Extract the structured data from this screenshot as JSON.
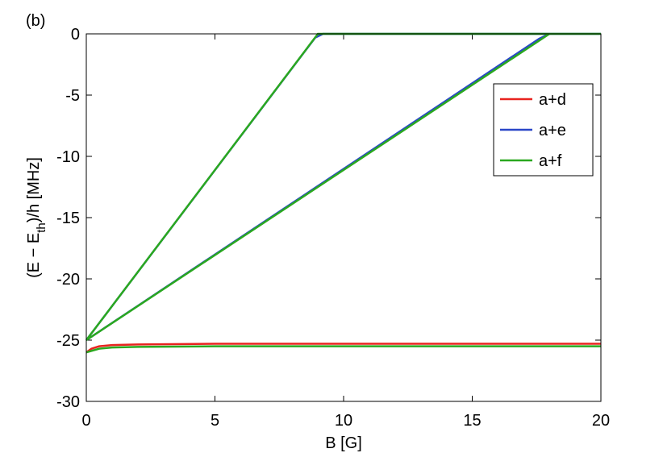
{
  "chart_data": {
    "type": "line",
    "panel_label": "(b)",
    "xlabel": "B [G]",
    "ylabel": {
      "start": "(E − E",
      "sub": "th",
      "end": ")/h [MHz]"
    },
    "xlim": [
      0,
      20
    ],
    "ylim": [
      -30,
      0
    ],
    "xticks": [
      0,
      5,
      10,
      15,
      20
    ],
    "yticks": [
      0,
      -5,
      -10,
      -15,
      -20,
      -25,
      -30
    ],
    "legend": "upper right",
    "series": [
      {
        "name": "a+d",
        "color": "#e8231f",
        "x": [
          0,
          0.2,
          0.5,
          1,
          2,
          5,
          10,
          20
        ],
        "values": [
          -26,
          -25.7,
          -25.5,
          -25.4,
          -25.35,
          -25.3,
          -25.3,
          -25.3
        ]
      },
      {
        "name": "a+e",
        "color": "#2a47c8",
        "x": [
          0,
          8.9,
          9.2,
          20,
          null,
          0,
          17.6,
          18,
          20
        ],
        "values": [
          -25,
          -0.3,
          0,
          0,
          null,
          -25,
          -0.4,
          0,
          0
        ]
      },
      {
        "name": "a+f",
        "color": "#2aa81f",
        "x": [
          0,
          9.0,
          20,
          null,
          0,
          18,
          20,
          null,
          0,
          0.5,
          1,
          2,
          5,
          20
        ],
        "values": [
          -25,
          0,
          0,
          null,
          -25,
          0,
          0,
          null,
          -26,
          -25.7,
          -25.6,
          -25.55,
          -25.5,
          -25.5
        ]
      }
    ]
  }
}
